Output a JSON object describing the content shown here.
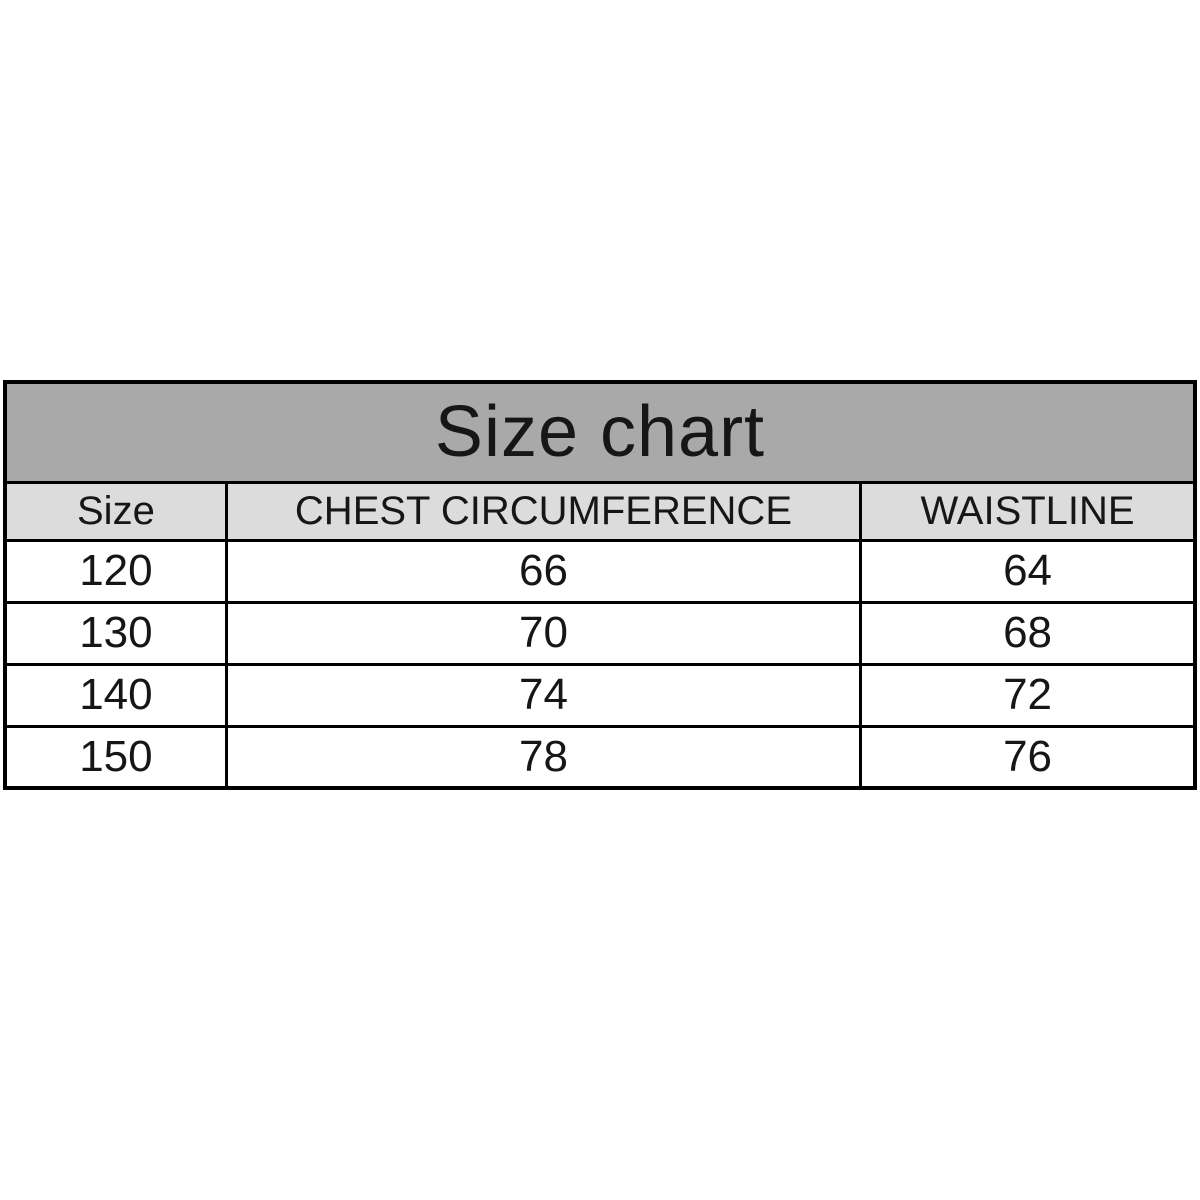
{
  "chart_data": {
    "type": "table",
    "title": "Size chart",
    "columns": [
      "Size",
      "CHEST CIRCUMFERENCE",
      "WAISTLINE"
    ],
    "rows": [
      [
        "120",
        "66",
        "64"
      ],
      [
        "130",
        "70",
        "68"
      ],
      [
        "140",
        "74",
        "72"
      ],
      [
        "150",
        "78",
        "76"
      ]
    ],
    "units": "",
    "layout": "title band spans all columns; header row shaded; 4 data rows"
  },
  "colors": {
    "title-bg": "#a9a9a9",
    "header-bg": "#dcdcdc",
    "border": "#000000",
    "text": "#161616",
    "page-bg": "#ffffff"
  }
}
